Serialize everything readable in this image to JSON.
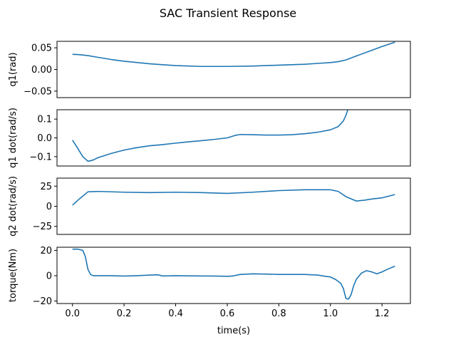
{
  "figure": {
    "title": "SAC Transient Response",
    "xlabel": "time(s)",
    "x_ticks": [
      0.0,
      0.2,
      0.4,
      0.6,
      0.8,
      1.0,
      1.2
    ],
    "x_tick_labels": [
      "0.0",
      "0.2",
      "0.4",
      "0.6",
      "0.8",
      "1.0",
      "1.2"
    ],
    "xlim": [
      -0.06,
      1.31
    ],
    "line_color": "#1f77b4"
  },
  "chart_data": [
    {
      "type": "line",
      "ylabel": "q1(rad)",
      "ylim": [
        -0.065,
        0.065
      ],
      "y_ticks": [
        0.05,
        0.0,
        -0.05
      ],
      "y_tick_labels": [
        "0.05",
        "0.00",
        "−0.05"
      ],
      "show_x_ticks": false,
      "x": [
        0.0,
        0.03,
        0.06,
        0.1,
        0.15,
        0.2,
        0.3,
        0.4,
        0.5,
        0.6,
        0.7,
        0.8,
        0.9,
        0.95,
        1.0,
        1.03,
        1.06,
        1.1,
        1.15,
        1.2,
        1.25
      ],
      "y": [
        0.035,
        0.034,
        0.032,
        0.028,
        0.023,
        0.019,
        0.013,
        0.009,
        0.007,
        0.007,
        0.008,
        0.01,
        0.012,
        0.014,
        0.016,
        0.018,
        0.022,
        0.031,
        0.042,
        0.053,
        0.063
      ]
    },
    {
      "type": "line",
      "ylabel": "q1 dot(rad/s)",
      "ylim": [
        -0.15,
        0.15
      ],
      "y_ticks": [
        0.1,
        0.0,
        -0.1
      ],
      "y_tick_labels": [
        "0.1",
        "0.0",
        "−0.1"
      ],
      "show_x_ticks": false,
      "x": [
        0.0,
        0.02,
        0.04,
        0.06,
        0.08,
        0.1,
        0.15,
        0.2,
        0.25,
        0.3,
        0.35,
        0.4,
        0.45,
        0.5,
        0.55,
        0.6,
        0.63,
        0.65,
        0.7,
        0.75,
        0.8,
        0.85,
        0.9,
        0.95,
        1.0,
        1.03,
        1.05,
        1.06,
        1.07
      ],
      "y": [
        -0.012,
        -0.055,
        -0.1,
        -0.125,
        -0.118,
        -0.105,
        -0.083,
        -0.065,
        -0.052,
        -0.042,
        -0.036,
        -0.028,
        -0.021,
        -0.015,
        -0.008,
        0.0,
        0.013,
        0.018,
        0.017,
        0.015,
        0.015,
        0.017,
        0.022,
        0.03,
        0.043,
        0.06,
        0.09,
        0.12,
        0.16
      ]
    },
    {
      "type": "line",
      "ylabel": "q2 dot(rad/s)",
      "ylim": [
        -35,
        35
      ],
      "y_ticks": [
        25,
        0,
        -25
      ],
      "y_tick_labels": [
        "25",
        "0",
        "−25"
      ],
      "show_x_ticks": false,
      "x": [
        0.0,
        0.03,
        0.06,
        0.1,
        0.2,
        0.3,
        0.4,
        0.5,
        0.6,
        0.7,
        0.8,
        0.9,
        1.0,
        1.03,
        1.06,
        1.1,
        1.13,
        1.16,
        1.2,
        1.25
      ],
      "y": [
        1.5,
        10.0,
        18.0,
        18.5,
        17.5,
        17.0,
        17.5,
        17.0,
        16.0,
        17.5,
        19.5,
        20.5,
        20.5,
        18.5,
        12.0,
        6.5,
        7.5,
        9.0,
        10.5,
        14.5
      ]
    },
    {
      "type": "line",
      "ylabel": "torque(Nm)",
      "ylim": [
        -22,
        22.5
      ],
      "y_ticks": [
        20,
        0,
        -20
      ],
      "y_tick_labels": [
        "20",
        "0",
        "−20"
      ],
      "show_x_ticks": true,
      "x": [
        0.0,
        0.02,
        0.04,
        0.05,
        0.06,
        0.07,
        0.08,
        0.1,
        0.15,
        0.2,
        0.25,
        0.3,
        0.33,
        0.35,
        0.4,
        0.5,
        0.55,
        0.6,
        0.62,
        0.65,
        0.7,
        0.75,
        0.8,
        0.9,
        0.95,
        0.98,
        1.0,
        1.02,
        1.04,
        1.05,
        1.06,
        1.07,
        1.08,
        1.09,
        1.1,
        1.12,
        1.14,
        1.16,
        1.18,
        1.2,
        1.22,
        1.25
      ],
      "y": [
        21.0,
        21.0,
        20.0,
        15.0,
        5.0,
        1.0,
        0.0,
        0.0,
        0.0,
        -0.3,
        0.0,
        0.5,
        0.7,
        -0.2,
        0.0,
        -0.2,
        -0.3,
        -0.5,
        -0.3,
        1.0,
        1.5,
        1.3,
        1.0,
        1.0,
        0.5,
        -0.5,
        -1.0,
        -3.0,
        -6.0,
        -10.0,
        -18.0,
        -18.5,
        -15.0,
        -8.0,
        -3.0,
        2.0,
        4.0,
        3.0,
        1.5,
        3.0,
        5.0,
        7.5
      ]
    }
  ]
}
